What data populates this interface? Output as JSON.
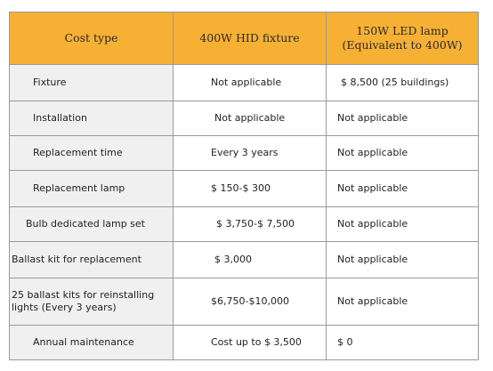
{
  "headers": {
    "cost_type": "Cost type",
    "hid": "400W HID fixture",
    "led": "150W LED lamp\n(Equivalent to 400W)"
  },
  "rows": [
    {
      "cost": "Fixture",
      "hid": "Not applicable",
      "led": "$ 8,500 (25 buildings)"
    },
    {
      "cost": "Installation",
      "hid": "Not applicable",
      "led": "Not applicable"
    },
    {
      "cost": "Replacement time",
      "hid": "Every 3 years",
      "led": "Not applicable"
    },
    {
      "cost": "Replacement lamp",
      "hid": "$ 150-$ 300",
      "led": "Not applicable"
    },
    {
      "cost": "Bulb dedicated lamp set",
      "hid": "$ 3,750-$ 7,500",
      "led": "Not applicable"
    },
    {
      "cost": "Ballast kit for replacement",
      "hid": "$ 3,000",
      "led": "Not applicable"
    },
    {
      "cost": "25 ballast kits for reinstalling\nlights  (Every 3 years)",
      "hid": "$6,750-$10,000",
      "led": "Not applicable"
    },
    {
      "cost": "Annual maintenance",
      "hid": "Cost up to $ 3,500",
      "led": "$ 0"
    }
  ],
  "colors": {
    "header_bg": "#f6b034",
    "first_col_bg": "#f0f0f0",
    "border": "#9a9a9a"
  }
}
